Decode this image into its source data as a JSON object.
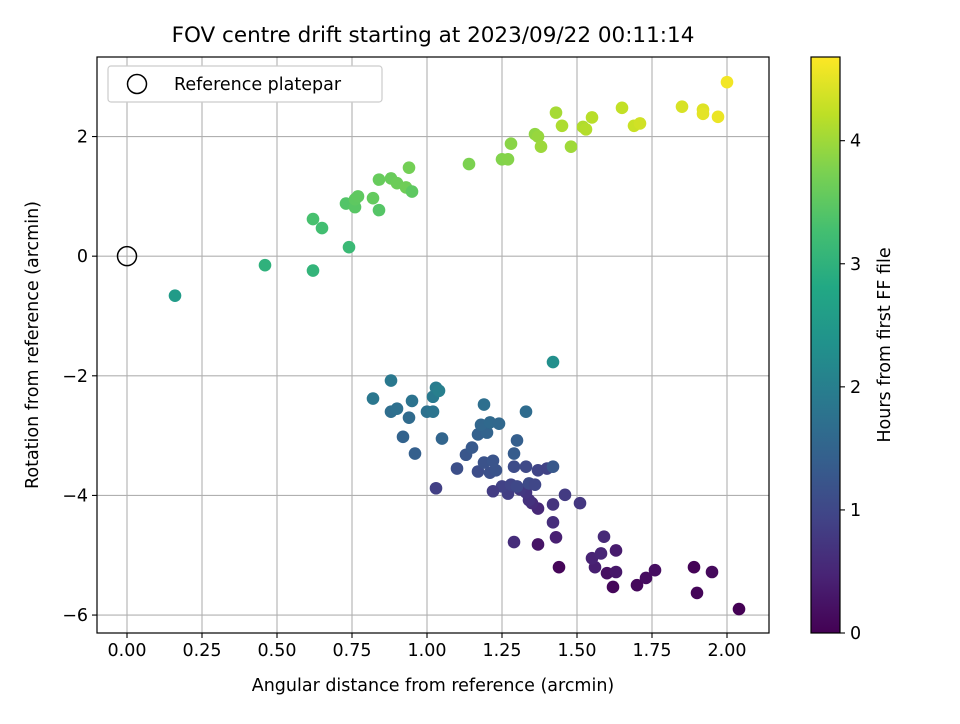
{
  "chart_data": {
    "type": "scatter",
    "title": "FOV centre drift starting at 2023/09/22 00:11:14",
    "xlabel": "Angular distance from reference (arcmin)",
    "ylabel": "Rotation from reference (arcmin)",
    "xlim": [
      -0.1,
      2.14
    ],
    "ylim": [
      -6.3,
      3.33
    ],
    "xticks": [
      0.0,
      0.25,
      0.5,
      0.75,
      1.0,
      1.25,
      1.5,
      1.75,
      2.0
    ],
    "xtick_labels": [
      "0.00",
      "0.25",
      "0.50",
      "0.75",
      "1.00",
      "1.25",
      "1.50",
      "1.75",
      "2.00"
    ],
    "yticks": [
      -6,
      -4,
      -2,
      0,
      2
    ],
    "ytick_labels": [
      "−6",
      "−4",
      "−2",
      "0",
      "2"
    ],
    "grid": true,
    "legend": {
      "placement": "upper-left",
      "entries": [
        "Reference platepar"
      ]
    },
    "reference_point": {
      "x": 0.0,
      "y": 0.0,
      "marker": "open-circle"
    },
    "colorbar": {
      "label": "Hours from first FF file",
      "colormap": "viridis",
      "range": [
        0,
        4.68
      ],
      "ticks": [
        0,
        1,
        2,
        3,
        4
      ],
      "tick_labels": [
        "0",
        "1",
        "2",
        "3",
        "4"
      ]
    },
    "points": [
      {
        "x": 2.04,
        "y": -5.9,
        "c": 0.0
      },
      {
        "x": 1.9,
        "y": -5.63,
        "c": 0.05
      },
      {
        "x": 1.62,
        "y": -5.53,
        "c": 0.08
      },
      {
        "x": 1.7,
        "y": -5.5,
        "c": 0.1
      },
      {
        "x": 1.73,
        "y": -5.38,
        "c": 0.15
      },
      {
        "x": 1.76,
        "y": -5.25,
        "c": 0.18
      },
      {
        "x": 1.89,
        "y": -5.2,
        "c": 0.03
      },
      {
        "x": 1.95,
        "y": -5.28,
        "c": 0.12
      },
      {
        "x": 1.44,
        "y": -5.2,
        "c": 0.07
      },
      {
        "x": 1.6,
        "y": -5.3,
        "c": 0.2
      },
      {
        "x": 1.63,
        "y": -5.28,
        "c": 0.3
      },
      {
        "x": 1.56,
        "y": -5.2,
        "c": 0.4
      },
      {
        "x": 1.55,
        "y": -5.05,
        "c": 0.45
      },
      {
        "x": 1.58,
        "y": -4.97,
        "c": 0.5
      },
      {
        "x": 1.63,
        "y": -4.92,
        "c": 0.35
      },
      {
        "x": 1.59,
        "y": -4.69,
        "c": 0.55
      },
      {
        "x": 1.37,
        "y": -4.82,
        "c": 0.25
      },
      {
        "x": 1.29,
        "y": -4.78,
        "c": 0.6
      },
      {
        "x": 1.43,
        "y": -4.7,
        "c": 0.42
      },
      {
        "x": 1.42,
        "y": -4.45,
        "c": 0.62
      },
      {
        "x": 1.42,
        "y": -4.15,
        "c": 0.7
      },
      {
        "x": 1.51,
        "y": -4.13,
        "c": 0.75
      },
      {
        "x": 1.46,
        "y": -3.99,
        "c": 0.8
      },
      {
        "x": 1.37,
        "y": -4.22,
        "c": 0.52
      },
      {
        "x": 1.35,
        "y": -4.13,
        "c": 0.58
      },
      {
        "x": 1.34,
        "y": -4.08,
        "c": 0.68
      },
      {
        "x": 1.33,
        "y": -3.95,
        "c": 0.72
      },
      {
        "x": 1.31,
        "y": -3.9,
        "c": 0.78
      },
      {
        "x": 1.27,
        "y": -3.97,
        "c": 0.85
      },
      {
        "x": 1.25,
        "y": -3.85,
        "c": 0.9
      },
      {
        "x": 1.22,
        "y": -3.93,
        "c": 0.82
      },
      {
        "x": 1.28,
        "y": -3.82,
        "c": 0.95
      },
      {
        "x": 1.3,
        "y": -3.85,
        "c": 1.0
      },
      {
        "x": 1.34,
        "y": -3.8,
        "c": 1.05
      },
      {
        "x": 1.36,
        "y": -3.82,
        "c": 0.98
      },
      {
        "x": 1.03,
        "y": -3.88,
        "c": 0.88
      },
      {
        "x": 1.17,
        "y": -3.6,
        "c": 1.1
      },
      {
        "x": 1.21,
        "y": -3.62,
        "c": 1.15
      },
      {
        "x": 1.23,
        "y": -3.58,
        "c": 1.2
      },
      {
        "x": 1.1,
        "y": -3.55,
        "c": 1.12
      },
      {
        "x": 1.13,
        "y": -3.32,
        "c": 1.25
      },
      {
        "x": 1.15,
        "y": -3.2,
        "c": 1.3
      },
      {
        "x": 1.19,
        "y": -3.45,
        "c": 1.18
      },
      {
        "x": 1.22,
        "y": -3.42,
        "c": 1.22
      },
      {
        "x": 1.29,
        "y": -3.52,
        "c": 1.08
      },
      {
        "x": 1.33,
        "y": -3.52,
        "c": 1.02
      },
      {
        "x": 1.37,
        "y": -3.58,
        "c": 0.96
      },
      {
        "x": 1.4,
        "y": -3.55,
        "c": 0.92
      },
      {
        "x": 1.42,
        "y": -3.52,
        "c": 1.28
      },
      {
        "x": 1.29,
        "y": -3.3,
        "c": 1.35
      },
      {
        "x": 1.3,
        "y": -3.08,
        "c": 1.4
      },
      {
        "x": 1.17,
        "y": -2.98,
        "c": 1.45
      },
      {
        "x": 1.2,
        "y": -2.95,
        "c": 1.5
      },
      {
        "x": 1.18,
        "y": -2.82,
        "c": 1.55
      },
      {
        "x": 1.21,
        "y": -2.78,
        "c": 1.6
      },
      {
        "x": 1.24,
        "y": -2.8,
        "c": 1.58
      },
      {
        "x": 1.33,
        "y": -2.6,
        "c": 1.65
      },
      {
        "x": 1.19,
        "y": -2.48,
        "c": 1.7
      },
      {
        "x": 1.05,
        "y": -3.05,
        "c": 1.52
      },
      {
        "x": 0.96,
        "y": -3.3,
        "c": 1.42
      },
      {
        "x": 0.92,
        "y": -3.02,
        "c": 1.48
      },
      {
        "x": 0.94,
        "y": -2.7,
        "c": 1.62
      },
      {
        "x": 0.88,
        "y": -2.6,
        "c": 1.68
      },
      {
        "x": 0.9,
        "y": -2.55,
        "c": 1.72
      },
      {
        "x": 1.0,
        "y": -2.6,
        "c": 1.75
      },
      {
        "x": 1.02,
        "y": -2.6,
        "c": 1.8
      },
      {
        "x": 0.95,
        "y": -2.42,
        "c": 1.78
      },
      {
        "x": 0.82,
        "y": -2.38,
        "c": 1.85
      },
      {
        "x": 1.02,
        "y": -2.35,
        "c": 1.9
      },
      {
        "x": 1.03,
        "y": -2.2,
        "c": 1.95
      },
      {
        "x": 1.04,
        "y": -2.25,
        "c": 2.0
      },
      {
        "x": 0.88,
        "y": -2.08,
        "c": 1.88
      },
      {
        "x": 1.42,
        "y": -1.77,
        "c": 2.3
      },
      {
        "x": 0.16,
        "y": -0.66,
        "c": 2.55
      },
      {
        "x": 0.46,
        "y": -0.15,
        "c": 3.0
      },
      {
        "x": 0.62,
        "y": -0.24,
        "c": 3.05
      },
      {
        "x": 0.74,
        "y": 0.15,
        "c": 3.15
      },
      {
        "x": 0.65,
        "y": 0.47,
        "c": 3.25
      },
      {
        "x": 0.62,
        "y": 0.62,
        "c": 3.3
      },
      {
        "x": 0.73,
        "y": 0.88,
        "c": 3.4
      },
      {
        "x": 0.76,
        "y": 0.82,
        "c": 3.45
      },
      {
        "x": 0.84,
        "y": 0.77,
        "c": 3.42
      },
      {
        "x": 0.76,
        "y": 0.95,
        "c": 3.5
      },
      {
        "x": 0.77,
        "y": 1.0,
        "c": 3.52
      },
      {
        "x": 0.82,
        "y": 0.97,
        "c": 3.55
      },
      {
        "x": 0.84,
        "y": 1.28,
        "c": 3.58
      },
      {
        "x": 0.88,
        "y": 1.3,
        "c": 3.6
      },
      {
        "x": 0.9,
        "y": 1.22,
        "c": 3.62
      },
      {
        "x": 0.93,
        "y": 1.15,
        "c": 3.65
      },
      {
        "x": 0.95,
        "y": 1.08,
        "c": 3.5
      },
      {
        "x": 0.94,
        "y": 1.48,
        "c": 3.68
      },
      {
        "x": 1.14,
        "y": 1.54,
        "c": 3.75
      },
      {
        "x": 1.25,
        "y": 1.62,
        "c": 3.8
      },
      {
        "x": 1.27,
        "y": 1.62,
        "c": 3.82
      },
      {
        "x": 1.28,
        "y": 1.88,
        "c": 3.85
      },
      {
        "x": 1.36,
        "y": 2.04,
        "c": 3.9
      },
      {
        "x": 1.37,
        "y": 2.0,
        "c": 3.95
      },
      {
        "x": 1.38,
        "y": 1.83,
        "c": 3.98
      },
      {
        "x": 1.48,
        "y": 1.83,
        "c": 4.0
      },
      {
        "x": 1.43,
        "y": 2.4,
        "c": 4.05
      },
      {
        "x": 1.45,
        "y": 2.18,
        "c": 4.1
      },
      {
        "x": 1.52,
        "y": 2.16,
        "c": 4.12
      },
      {
        "x": 1.53,
        "y": 2.12,
        "c": 4.15
      },
      {
        "x": 1.55,
        "y": 2.32,
        "c": 4.18
      },
      {
        "x": 1.65,
        "y": 2.48,
        "c": 4.25
      },
      {
        "x": 1.69,
        "y": 2.18,
        "c": 4.3
      },
      {
        "x": 1.71,
        "y": 2.22,
        "c": 4.35
      },
      {
        "x": 1.85,
        "y": 2.5,
        "c": 4.4
      },
      {
        "x": 1.92,
        "y": 2.45,
        "c": 4.45
      },
      {
        "x": 1.92,
        "y": 2.38,
        "c": 4.5
      },
      {
        "x": 1.97,
        "y": 2.33,
        "c": 4.55
      },
      {
        "x": 2.0,
        "y": 2.91,
        "c": 4.6
      }
    ]
  }
}
